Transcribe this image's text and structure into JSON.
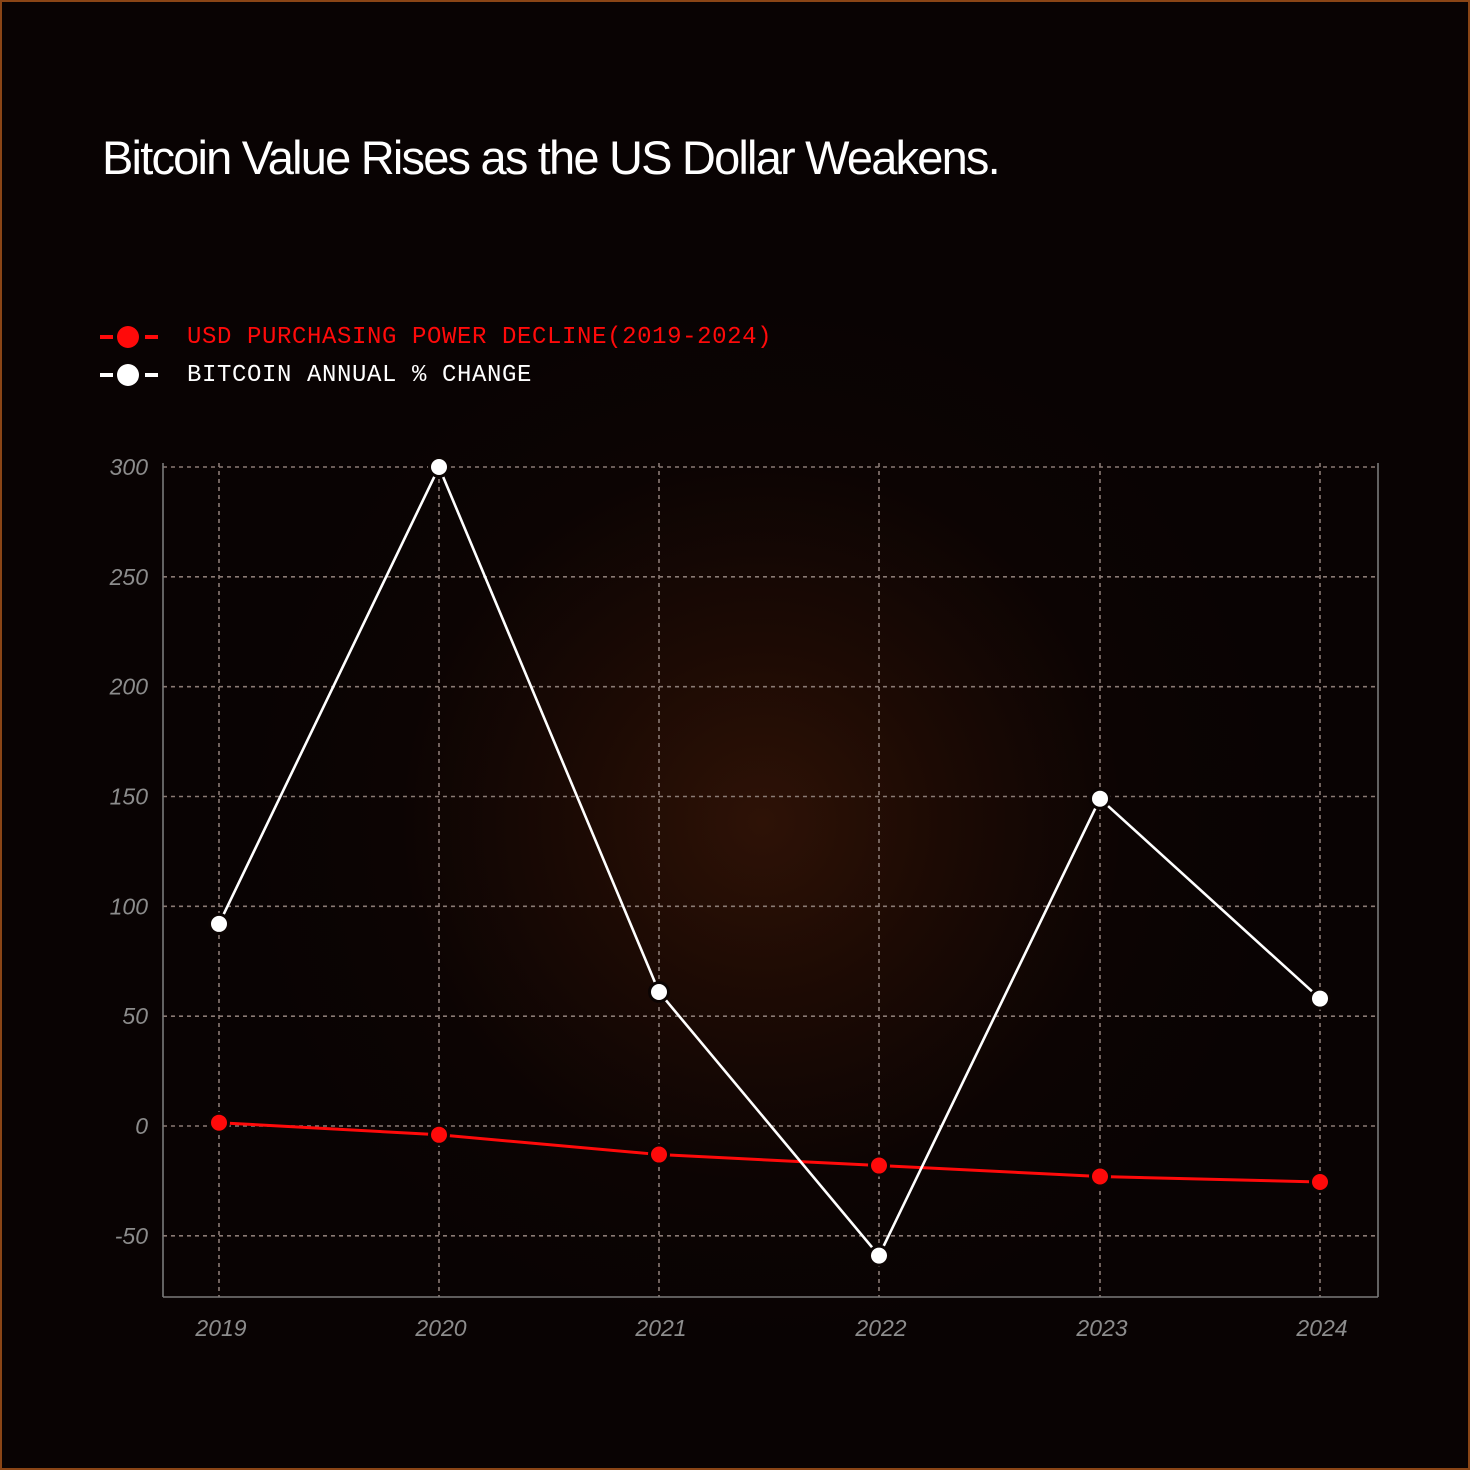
{
  "title": "Bitcoin Value Rises as the US Dollar Weakens.",
  "colors": {
    "background": "#090303",
    "border": "#8a4516",
    "usd_series": "#ff0a0a",
    "btc_series": "#ffffff",
    "grid": "#8a7a74",
    "axis": "#7a7a7a",
    "tick_text": "#8c8c8c"
  },
  "legend": {
    "items": [
      {
        "label": "USD PURCHASING POWER DECLINE(2019-2024)",
        "color": "#ff0a0a",
        "icon": "red-dot-line-icon"
      },
      {
        "label": "BITCOIN ANNUAL % CHANGE",
        "color": "#ffffff",
        "icon": "white-dot-line-icon"
      }
    ]
  },
  "chart_data": {
    "type": "line",
    "title": "Bitcoin Value Rises as the US Dollar Weakens.",
    "xlabel": "",
    "ylabel": "",
    "categories": [
      "2019",
      "2020",
      "2021",
      "2022",
      "2023",
      "2024"
    ],
    "x": [
      "2019",
      "2020",
      "2021",
      "2022",
      "2023",
      "2024"
    ],
    "series": [
      {
        "name": "USD PURCHASING POWER DECLINE(2019-2024)",
        "color": "#ff0a0a",
        "values": [
          1.5,
          -4,
          -13,
          -18,
          -23,
          -25.5
        ]
      },
      {
        "name": "BITCOIN ANNUAL % CHANGE",
        "color": "#ffffff",
        "values": [
          92,
          300,
          61,
          -59,
          149,
          58
        ]
      }
    ],
    "yticks": [
      300,
      250,
      200,
      150,
      100,
      50,
      0,
      -50
    ],
    "ylim": [
      -78,
      302
    ],
    "grid": true,
    "grid_style": "dotted",
    "legend_position": "top-left"
  }
}
